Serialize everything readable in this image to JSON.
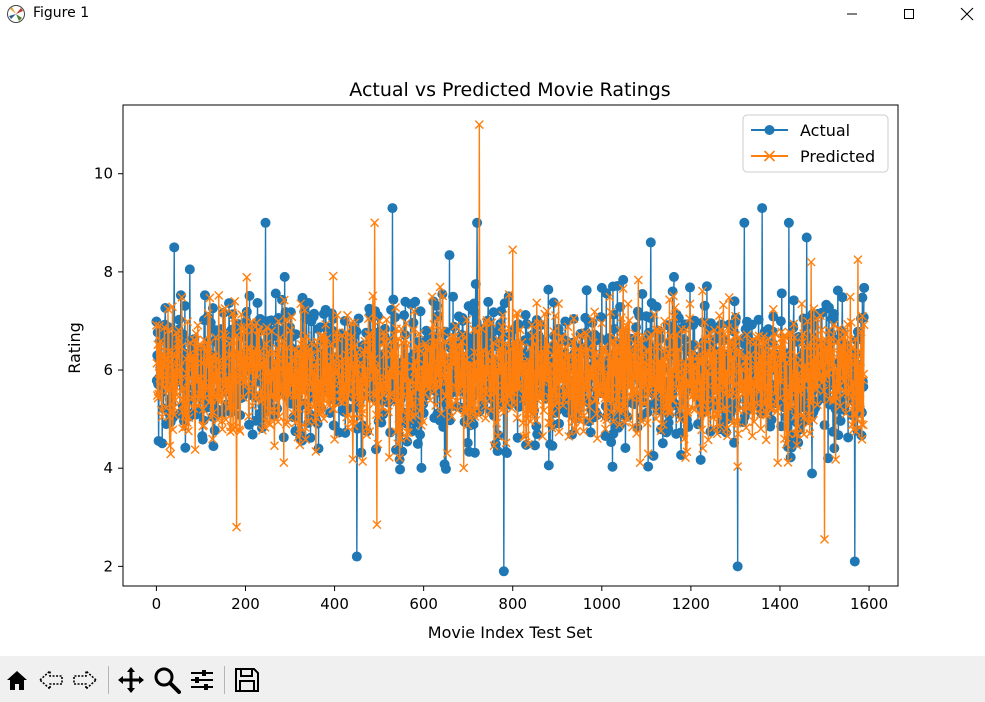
{
  "window": {
    "title": "Figure 1"
  },
  "toolbar": {
    "tools": [
      "home-icon",
      "back-icon",
      "forward-icon",
      "pan-icon",
      "zoom-icon",
      "configure-subplots-icon",
      "save-icon"
    ]
  },
  "colors": {
    "actual": "#1f77b4",
    "predicted": "#ff7f0e"
  },
  "chart_data": {
    "type": "line",
    "title": "Actual vs Predicted Movie Ratings",
    "xlabel": "Movie Index Test Set",
    "ylabel": "Rating",
    "xlim": [
      -75,
      1665
    ],
    "ylim": [
      1.6,
      11.4
    ],
    "xticks": [
      0,
      200,
      400,
      600,
      800,
      1000,
      1200,
      1400,
      1600
    ],
    "yticks": [
      2,
      4,
      6,
      8,
      10
    ],
    "grid": false,
    "legend_placement": "upper right",
    "n_points": 1590,
    "series": [
      {
        "name": "Actual",
        "marker": "o",
        "notable_points": [
          [
            780,
            1.9
          ],
          [
            1305,
            2.0
          ],
          [
            1568,
            2.1
          ],
          [
            450,
            2.2
          ],
          [
            530,
            9.3
          ],
          [
            1360,
            9.3
          ],
          [
            720,
            9.0
          ],
          [
            245,
            9.0
          ],
          [
            1420,
            9.0
          ],
          [
            1320,
            9.0
          ],
          [
            1460,
            8.7
          ],
          [
            1590,
            8.6
          ],
          [
            40,
            8.5
          ],
          [
            1110,
            8.6
          ]
        ],
        "typical_range": [
          2.5,
          8.5
        ],
        "mean": 6.0
      },
      {
        "name": "Predicted",
        "marker": "x",
        "notable_points": [
          [
            725,
            11.0
          ],
          [
            490,
            9.0
          ],
          [
            1500,
            2.55
          ],
          [
            180,
            2.8
          ],
          [
            495,
            2.85
          ],
          [
            800,
            8.45
          ],
          [
            1470,
            8.2
          ],
          [
            1575,
            8.25
          ]
        ],
        "typical_range": [
          3.2,
          8.0
        ],
        "mean": 5.9
      }
    ]
  }
}
